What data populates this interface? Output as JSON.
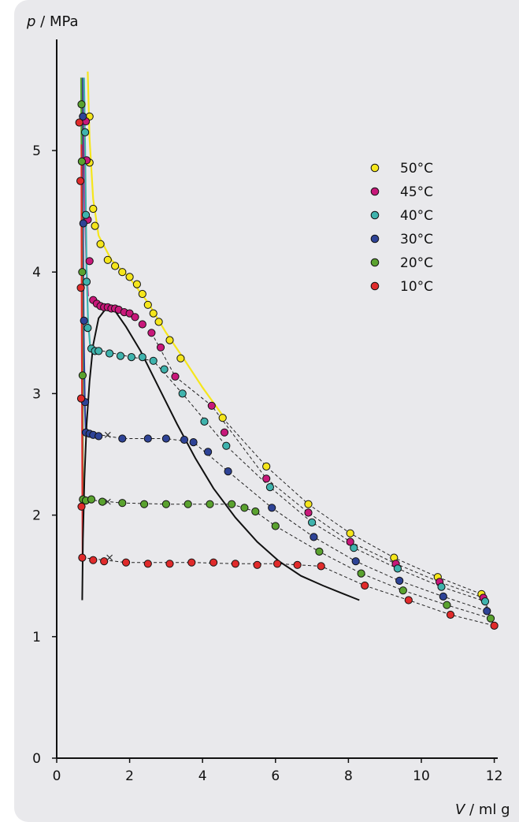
{
  "chart_data": {
    "type": "scatter",
    "title": "",
    "ylabel_var": "p",
    "ylabel_unit": "MPa",
    "xlabel_var": "V",
    "xlabel_unit": "ml g",
    "xlim": [
      0,
      12
    ],
    "ylim": [
      0,
      5.7
    ],
    "xticks": [
      0,
      2,
      4,
      6,
      8,
      10,
      12
    ],
    "yticks": [
      0,
      1,
      2,
      3,
      4,
      5
    ],
    "grid": false,
    "legend_position": "top-right",
    "series": [
      {
        "name": "50°C",
        "color": "#f5e61c",
        "points": [
          [
            0.9,
            5.28
          ],
          [
            0.9,
            4.9
          ],
          [
            1.0,
            4.52
          ],
          [
            1.05,
            4.38
          ],
          [
            1.2,
            4.23
          ],
          [
            1.4,
            4.1
          ],
          [
            1.6,
            4.05
          ],
          [
            1.8,
            4.0
          ],
          [
            2.0,
            3.96
          ],
          [
            2.2,
            3.9
          ],
          [
            2.35,
            3.82
          ],
          [
            2.5,
            3.73
          ],
          [
            2.65,
            3.66
          ],
          [
            2.8,
            3.59
          ],
          [
            3.1,
            3.44
          ],
          [
            3.4,
            3.29
          ],
          [
            4.55,
            2.8
          ],
          [
            5.75,
            2.4
          ],
          [
            6.9,
            2.09
          ],
          [
            8.05,
            1.85
          ],
          [
            9.25,
            1.65
          ],
          [
            10.45,
            1.49
          ],
          [
            11.65,
            1.35
          ]
        ],
        "curve": [
          [
            0.85,
            5.65
          ],
          [
            0.9,
            5.1
          ],
          [
            1.0,
            4.6
          ],
          [
            1.15,
            4.3
          ],
          [
            1.5,
            4.1
          ],
          [
            2.0,
            3.95
          ],
          [
            2.5,
            3.75
          ],
          [
            3.0,
            3.5
          ],
          [
            3.5,
            3.28
          ],
          [
            4.0,
            3.05
          ],
          [
            4.55,
            2.82
          ]
        ],
        "curve_color": "#f5e61c",
        "dashed": [
          [
            4.55,
            2.8
          ],
          [
            5.75,
            2.4
          ],
          [
            6.9,
            2.09
          ],
          [
            8.05,
            1.85
          ],
          [
            9.25,
            1.65
          ],
          [
            10.45,
            1.49
          ],
          [
            11.65,
            1.35
          ],
          [
            11.8,
            1.22
          ]
        ]
      },
      {
        "name": "45°C",
        "color": "#c8187a",
        "points": [
          [
            0.8,
            5.24
          ],
          [
            0.82,
            4.92
          ],
          [
            0.85,
            4.43
          ],
          [
            0.9,
            4.09
          ],
          [
            1.0,
            3.77
          ],
          [
            1.1,
            3.74
          ],
          [
            1.2,
            3.72
          ],
          [
            1.3,
            3.71
          ],
          [
            1.4,
            3.71
          ],
          [
            1.5,
            3.7
          ],
          [
            1.6,
            3.7
          ],
          [
            1.7,
            3.69
          ],
          [
            1.85,
            3.67
          ],
          [
            2.0,
            3.66
          ],
          [
            2.15,
            3.63
          ],
          [
            2.35,
            3.57
          ],
          [
            2.6,
            3.5
          ],
          [
            2.85,
            3.38
          ],
          [
            3.25,
            3.14
          ],
          [
            4.25,
            2.9
          ],
          [
            4.6,
            2.68
          ],
          [
            5.75,
            2.3
          ],
          [
            6.9,
            2.02
          ],
          [
            8.05,
            1.78
          ],
          [
            9.3,
            1.6
          ],
          [
            10.5,
            1.45
          ],
          [
            11.7,
            1.32
          ]
        ],
        "curve": [
          [
            0.72,
            5.6
          ],
          [
            0.75,
            5.0
          ],
          [
            0.78,
            4.5
          ],
          [
            0.82,
            4.0
          ],
          [
            0.86,
            3.8
          ]
        ],
        "curve_color": "#c8187a",
        "dashed": [
          [
            2.6,
            3.5
          ],
          [
            3.25,
            3.14
          ],
          [
            4.25,
            2.9
          ],
          [
            5.75,
            2.3
          ],
          [
            6.9,
            2.02
          ],
          [
            8.05,
            1.78
          ],
          [
            9.3,
            1.6
          ],
          [
            10.5,
            1.45
          ],
          [
            11.7,
            1.32
          ],
          [
            11.85,
            1.2
          ]
        ]
      },
      {
        "name": "40°C",
        "color": "#3fb3ad",
        "points": [
          [
            0.78,
            5.15
          ],
          [
            0.8,
            4.47
          ],
          [
            0.82,
            3.92
          ],
          [
            0.85,
            3.54
          ],
          [
            0.95,
            3.37
          ],
          [
            1.05,
            3.35
          ],
          [
            1.15,
            3.35
          ],
          [
            1.45,
            3.33
          ],
          [
            1.75,
            3.31
          ],
          [
            2.05,
            3.3
          ],
          [
            2.35,
            3.3
          ],
          [
            2.65,
            3.27
          ],
          [
            2.95,
            3.2
          ],
          [
            3.45,
            3.0
          ],
          [
            4.05,
            2.77
          ],
          [
            4.65,
            2.57
          ],
          [
            5.85,
            2.23
          ],
          [
            7.0,
            1.94
          ],
          [
            8.15,
            1.73
          ],
          [
            9.35,
            1.56
          ],
          [
            10.55,
            1.41
          ],
          [
            11.75,
            1.29
          ]
        ],
        "curve": [
          [
            0.75,
            5.6
          ],
          [
            0.78,
            5.0
          ],
          [
            0.8,
            4.5
          ],
          [
            0.82,
            4.0
          ],
          [
            0.86,
            3.6
          ],
          [
            0.92,
            3.38
          ]
        ],
        "curve_color": "#3fb3ad",
        "dashed": [
          [
            0.95,
            3.37
          ],
          [
            2.05,
            3.3
          ],
          [
            2.65,
            3.27
          ],
          [
            3.45,
            3.0
          ],
          [
            4.65,
            2.57
          ],
          [
            5.85,
            2.23
          ],
          [
            7.0,
            1.94
          ],
          [
            8.15,
            1.73
          ],
          [
            9.35,
            1.56
          ],
          [
            10.55,
            1.41
          ],
          [
            11.75,
            1.29
          ],
          [
            11.9,
            1.17
          ]
        ]
      },
      {
        "name": "30°C",
        "color": "#2e4396",
        "points": [
          [
            0.72,
            5.28
          ],
          [
            0.73,
            4.4
          ],
          [
            0.75,
            3.6
          ],
          [
            0.78,
            2.93
          ],
          [
            0.8,
            2.68
          ],
          [
            0.9,
            2.67
          ],
          [
            1.0,
            2.66
          ],
          [
            1.15,
            2.65
          ],
          [
            1.8,
            2.63
          ],
          [
            2.5,
            2.63
          ],
          [
            3.0,
            2.63
          ],
          [
            3.5,
            2.62
          ],
          [
            3.75,
            2.6
          ],
          [
            4.15,
            2.52
          ],
          [
            4.7,
            2.36
          ],
          [
            5.9,
            2.06
          ],
          [
            7.05,
            1.82
          ],
          [
            8.2,
            1.62
          ],
          [
            9.4,
            1.46
          ],
          [
            10.6,
            1.33
          ],
          [
            11.8,
            1.21
          ]
        ],
        "curve": [
          [
            0.7,
            5.6
          ],
          [
            0.71,
            5.0
          ],
          [
            0.72,
            4.5
          ],
          [
            0.74,
            3.5
          ],
          [
            0.77,
            2.9
          ],
          [
            0.8,
            2.68
          ]
        ],
        "curve_color": "#2e4396",
        "dashed": [
          [
            0.8,
            2.68
          ],
          [
            1.8,
            2.63
          ],
          [
            3.0,
            2.63
          ],
          [
            3.75,
            2.6
          ],
          [
            4.7,
            2.36
          ],
          [
            5.9,
            2.06
          ],
          [
            7.05,
            1.82
          ],
          [
            8.2,
            1.62
          ],
          [
            9.4,
            1.46
          ],
          [
            10.6,
            1.33
          ],
          [
            11.8,
            1.21
          ],
          [
            11.95,
            1.13
          ]
        ]
      },
      {
        "name": "20°C",
        "color": "#5aa22f",
        "points": [
          [
            0.68,
            5.38
          ],
          [
            0.69,
            4.91
          ],
          [
            0.7,
            4.0
          ],
          [
            0.71,
            3.15
          ],
          [
            0.72,
            2.13
          ],
          [
            0.8,
            2.12
          ],
          [
            0.95,
            2.13
          ],
          [
            1.25,
            2.11
          ],
          [
            1.8,
            2.1
          ],
          [
            2.4,
            2.09
          ],
          [
            3.0,
            2.09
          ],
          [
            3.6,
            2.09
          ],
          [
            4.2,
            2.09
          ],
          [
            4.8,
            2.09
          ],
          [
            5.15,
            2.06
          ],
          [
            5.45,
            2.03
          ],
          [
            6.0,
            1.91
          ],
          [
            7.2,
            1.7
          ],
          [
            8.35,
            1.52
          ],
          [
            9.5,
            1.38
          ],
          [
            10.7,
            1.26
          ],
          [
            11.9,
            1.15
          ]
        ],
        "curve": [
          [
            0.67,
            5.6
          ],
          [
            0.68,
            5.0
          ],
          [
            0.7,
            4.0
          ],
          [
            0.71,
            3.0
          ],
          [
            0.72,
            2.13
          ]
        ],
        "curve_color": "#5aa22f",
        "dashed": [
          [
            0.72,
            2.13
          ],
          [
            1.8,
            2.1
          ],
          [
            3.0,
            2.09
          ],
          [
            4.8,
            2.09
          ],
          [
            5.45,
            2.03
          ],
          [
            6.0,
            1.91
          ],
          [
            7.2,
            1.7
          ],
          [
            8.35,
            1.52
          ],
          [
            9.5,
            1.38
          ],
          [
            10.7,
            1.26
          ],
          [
            11.9,
            1.15
          ],
          [
            12.0,
            1.1
          ]
        ]
      },
      {
        "name": "10°C",
        "color": "#e02b2b",
        "points": [
          [
            0.62,
            5.23
          ],
          [
            0.65,
            4.75
          ],
          [
            0.66,
            3.87
          ],
          [
            0.67,
            2.96
          ],
          [
            0.68,
            2.07
          ],
          [
            0.7,
            1.65
          ],
          [
            1.0,
            1.63
          ],
          [
            1.3,
            1.62
          ],
          [
            1.9,
            1.61
          ],
          [
            2.5,
            1.6
          ],
          [
            3.1,
            1.6
          ],
          [
            3.7,
            1.61
          ],
          [
            4.3,
            1.61
          ],
          [
            4.9,
            1.6
          ],
          [
            5.5,
            1.59
          ],
          [
            6.05,
            1.6
          ],
          [
            6.6,
            1.59
          ],
          [
            7.25,
            1.58
          ],
          [
            8.45,
            1.42
          ],
          [
            9.65,
            1.3
          ],
          [
            10.8,
            1.18
          ],
          [
            12.0,
            1.09
          ]
        ],
        "curve": [
          [
            0.68,
            5.05
          ],
          [
            0.68,
            4.5
          ],
          [
            0.69,
            3.5
          ],
          [
            0.7,
            2.5
          ],
          [
            0.71,
            1.65
          ]
        ],
        "curve_color": "#e02b2b",
        "dashed": [
          [
            0.7,
            1.65
          ],
          [
            1.9,
            1.61
          ],
          [
            3.7,
            1.61
          ],
          [
            4.9,
            1.6
          ],
          [
            6.05,
            1.6
          ],
          [
            7.25,
            1.58
          ],
          [
            8.45,
            1.42
          ],
          [
            9.65,
            1.3
          ],
          [
            10.8,
            1.18
          ],
          [
            12.0,
            1.09
          ]
        ]
      }
    ],
    "coexistence_curve": [
      [
        0.7,
        1.3
      ],
      [
        0.72,
        1.8
      ],
      [
        0.76,
        2.3
      ],
      [
        0.82,
        2.75
      ],
      [
        0.9,
        3.1
      ],
      [
        1.0,
        3.4
      ],
      [
        1.15,
        3.62
      ],
      [
        1.35,
        3.7
      ],
      [
        1.6,
        3.68
      ],
      [
        1.9,
        3.55
      ],
      [
        2.3,
        3.35
      ],
      [
        2.8,
        3.05
      ],
      [
        3.3,
        2.75
      ],
      [
        3.8,
        2.47
      ],
      [
        4.3,
        2.22
      ],
      [
        4.9,
        1.98
      ],
      [
        5.5,
        1.78
      ],
      [
        6.1,
        1.62
      ],
      [
        6.7,
        1.5
      ],
      [
        7.3,
        1.42
      ],
      [
        7.8,
        1.36
      ],
      [
        8.3,
        1.3
      ]
    ],
    "crosses": [
      [
        1.4,
        2.66
      ],
      [
        1.4,
        2.11
      ],
      [
        1.45,
        1.65
      ]
    ]
  }
}
